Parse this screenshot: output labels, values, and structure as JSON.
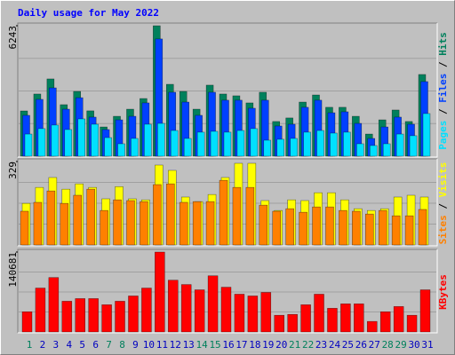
{
  "chart_data": [
    {
      "type": "bar",
      "title": "Daily usage for May 2022",
      "title_color": "#0000FF",
      "legend_separator": " / ",
      "ylim": [
        0,
        6243
      ],
      "yticks": [
        6243
      ],
      "series": [
        {
          "name": "Hits",
          "color": "#00805C",
          "values": [
            2166,
            2975,
            3697,
            2465,
            3100,
            2170,
            1400,
            1910,
            2250,
            2760,
            6243,
            3440,
            3100,
            2250,
            3400,
            2975,
            2890,
            2550,
            3060,
            1660,
            1830,
            2590,
            2930,
            2340,
            2340,
            1910,
            1060,
            1740,
            2210,
            1660,
            3910
          ]
        },
        {
          "name": "Files",
          "color": "#0040FF",
          "values": [
            1955,
            2720,
            3270,
            2250,
            2800,
            1870,
            1275,
            1740,
            1910,
            2550,
            5610,
            3060,
            2590,
            1955,
            3060,
            2680,
            2680,
            2295,
            2680,
            1445,
            1530,
            2340,
            2680,
            2080,
            2125,
            1570,
            850,
            1400,
            1870,
            1530,
            3570
          ]
        },
        {
          "name": "Pages",
          "color": "#00E0FF",
          "values": [
            1060,
            1320,
            1490,
            1275,
            1785,
            1530,
            890,
            595,
            850,
            1530,
            1570,
            1230,
            850,
            1150,
            1190,
            1150,
            1230,
            1320,
            765,
            810,
            850,
            1150,
            1230,
            1105,
            1150,
            595,
            510,
            595,
            1060,
            980,
            2040
          ]
        }
      ]
    },
    {
      "type": "bar",
      "legend_separator": " / ",
      "ylim": [
        0,
        329
      ],
      "yticks": [
        329
      ],
      "series": [
        {
          "name": "Visits",
          "color": "#FFFF00",
          "values": [
            164,
            227,
            266,
            220,
            241,
            227,
            182,
            230,
            182,
            178,
            315,
            294,
            189,
            171,
            199,
            266,
            322,
            322,
            175,
            136,
            178,
            175,
            206,
            206,
            178,
            143,
            136,
            143,
            189,
            196,
            189
          ]
        },
        {
          "name": "Sites",
          "color": "#FF8000",
          "values": [
            133,
            168,
            213,
            164,
            196,
            220,
            136,
            178,
            175,
            171,
            238,
            241,
            168,
            171,
            171,
            255,
            227,
            227,
            157,
            133,
            143,
            129,
            150,
            150,
            136,
            133,
            122,
            136,
            115,
            115,
            140
          ]
        }
      ]
    },
    {
      "type": "bar",
      "ylim": [
        0,
        140681
      ],
      "yticks": [
        140681
      ],
      "categories": [
        "1",
        "2",
        "3",
        "4",
        "5",
        "6",
        "7",
        "8",
        "9",
        "10",
        "11",
        "12",
        "13",
        "14",
        "15",
        "16",
        "17",
        "18",
        "19",
        "20",
        "21",
        "22",
        "23",
        "24",
        "25",
        "26",
        "27",
        "28",
        "29",
        "30",
        "31"
      ],
      "label_color": "#0000C0",
      "highlight_color": "#00805C",
      "highlight_indices": [
        0,
        6,
        7,
        13,
        14,
        20,
        21,
        27,
        28
      ],
      "series": [
        {
          "name": "KBytes",
          "color": "#FF0000",
          "values": [
            35560,
            77300,
            95850,
            54100,
            58750,
            58750,
            47900,
            54100,
            63400,
            77300,
            140681,
            91200,
            83500,
            74200,
            98900,
            78800,
            66500,
            63400,
            69600,
            29400,
            30900,
            47900,
            66500,
            41700,
            49500,
            49500,
            18550,
            35560,
            44800,
            29400,
            74200
          ]
        }
      ]
    }
  ]
}
